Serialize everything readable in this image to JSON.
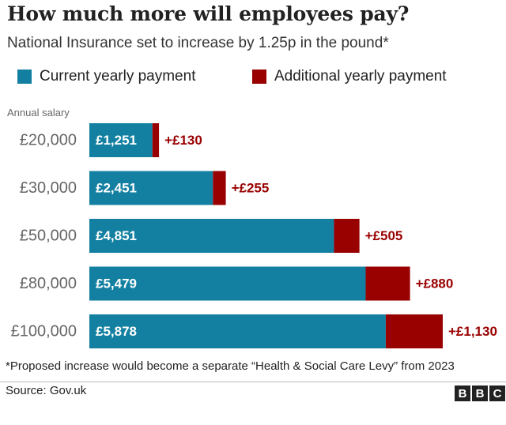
{
  "title": "How much more will employees pay?",
  "subtitle": "National Insurance set to increase by 1.25p in the pound*",
  "colors": {
    "current": "#1380a1",
    "additional": "#990000",
    "value_label": "#ffffff",
    "tick_label": "#666666"
  },
  "legend": {
    "current_label": "Current yearly payment",
    "additional_label": "Additional yearly payment"
  },
  "footnote": "*Proposed increase would become a separate “Health & Social Care Levy” from 2023",
  "source": "Source: Gov.uk",
  "logo": [
    "B",
    "B",
    "C"
  ],
  "chart_data": {
    "type": "bar",
    "orientation": "horizontal",
    "stacked": true,
    "axis_title": "Annual salary",
    "categories": [
      "£20,000",
      "£30,000",
      "£50,000",
      "£80,000",
      "£100,000"
    ],
    "series": [
      {
        "name": "Current yearly payment",
        "values": [
          1251,
          2451,
          4851,
          5479,
          5878
        ],
        "labels": [
          "£1,251",
          "£2,451",
          "£4,851",
          "£5,479",
          "£5,878"
        ]
      },
      {
        "name": "Additional yearly payment",
        "values": [
          130,
          255,
          505,
          880,
          1130
        ],
        "labels": [
          "+£130",
          "+£255",
          "+£505",
          "+£880",
          "+£1,130"
        ]
      }
    ],
    "xlim": [
      0,
      7008
    ],
    "grid": false,
    "legend_position": "top"
  }
}
